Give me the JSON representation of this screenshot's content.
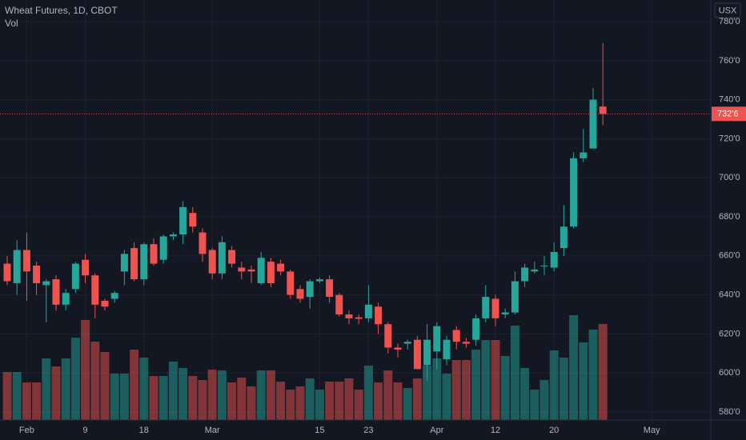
{
  "chart_data": {
    "type": "candlestick",
    "title": "Wheat Futures, 1D, CBOT",
    "volume_label": "Vol",
    "currency": "USX",
    "categories": [
      "",
      "",
      "Feb",
      null,
      null,
      null,
      null,
      null,
      "9",
      null,
      null,
      null,
      null,
      null,
      "18",
      null,
      null,
      null,
      null,
      null,
      null,
      "Mar",
      null,
      null,
      null,
      null,
      null,
      null,
      null,
      null,
      null,
      null,
      "15",
      null,
      null,
      null,
      null,
      "23",
      null,
      null,
      null,
      null,
      null,
      null,
      "Apr",
      null,
      null,
      null,
      null,
      null,
      "12",
      null,
      null,
      null,
      null,
      null,
      "20",
      null,
      null,
      null,
      null,
      null,
      null,
      null,
      null,
      null,
      "May"
    ],
    "open": [
      656,
      646,
      663,
      655,
      645,
      648,
      635,
      643,
      658,
      650,
      637,
      638,
      652,
      664,
      648,
      666,
      658,
      670,
      671,
      682,
      672,
      663,
      651,
      663,
      654,
      653,
      646,
      657,
      656,
      652,
      643,
      639,
      647,
      648,
      640,
      630,
      628.5,
      628,
      634,
      625,
      613,
      615,
      617,
      604,
      611,
      607,
      622,
      616,
      617,
      628,
      638,
      630,
      631,
      647,
      652,
      655,
      654,
      664,
      675,
      710,
      715,
      736.5,
      null,
      null,
      null,
      null,
      null
    ],
    "high": [
      660,
      668,
      672,
      657,
      648,
      650,
      643,
      657,
      661,
      651,
      638,
      642,
      663,
      667,
      667,
      669,
      671,
      672,
      688,
      685,
      674,
      664,
      670,
      665,
      657,
      655,
      662,
      659,
      658,
      653,
      645,
      648,
      649,
      650,
      641,
      632,
      630,
      645,
      636,
      626,
      615,
      617,
      619,
      625,
      626,
      619,
      624,
      618,
      630,
      645,
      640,
      633,
      652,
      656,
      657,
      660,
      667,
      686,
      713,
      725,
      746,
      769,
      null,
      null,
      null,
      null,
      null
    ],
    "low": [
      645,
      640,
      637,
      640,
      626,
      632,
      632,
      641,
      646,
      628,
      632,
      636,
      645,
      647,
      645,
      655,
      656,
      668,
      666,
      672,
      657,
      648,
      648,
      654,
      648,
      646,
      645,
      644,
      650,
      638,
      636,
      633,
      646,
      636,
      629,
      625,
      625,
      626,
      620,
      610,
      608,
      612,
      602,
      596,
      602,
      604,
      612,
      613,
      614,
      626,
      624,
      628,
      630,
      644,
      651,
      650,
      652,
      660,
      674,
      708,
      715,
      727,
      null,
      null,
      null,
      null,
      null
    ],
    "close": [
      647,
      663,
      652,
      646,
      647,
      635,
      641,
      656,
      650,
      635,
      634,
      641,
      661,
      648,
      666,
      656,
      670,
      671,
      685,
      675,
      661,
      651,
      667,
      656,
      652,
      652,
      659,
      646,
      652,
      640,
      638,
      647,
      648,
      639,
      630,
      628,
      627.75,
      635,
      625,
      613,
      612,
      616,
      602,
      617,
      624,
      617,
      616,
      615,
      628,
      639,
      628,
      631,
      647,
      654,
      653,
      655,
      662,
      675,
      710,
      713,
      740,
      732.75,
      null,
      null,
      null,
      null,
      null
    ],
    "volume": [
      60,
      60,
      47,
      47,
      77,
      67,
      77,
      103,
      125,
      98,
      85,
      58,
      58,
      88,
      78,
      55,
      55,
      73,
      65,
      55,
      50,
      63,
      62,
      47,
      53,
      42,
      62,
      62,
      48,
      38,
      42,
      52,
      38,
      48,
      48,
      52,
      38,
      68,
      47,
      62,
      47,
      40,
      52,
      68,
      77,
      58,
      75,
      75,
      88,
      100,
      100,
      80,
      118,
      65,
      38,
      50,
      87,
      78,
      131,
      97,
      113,
      120,
      null,
      null,
      null,
      null,
      null
    ],
    "up_color": "#26a69a",
    "down_color": "#ef5350",
    "ylim": [
      575.9,
      791.1
    ],
    "yticks": [
      {
        "value": 580,
        "label": "580'0"
      },
      {
        "value": 600,
        "label": "600'0"
      },
      {
        "value": 620,
        "label": "620'0"
      },
      {
        "value": 640,
        "label": "640'0"
      },
      {
        "value": 660,
        "label": "660'0"
      },
      {
        "value": 680,
        "label": "680'0"
      },
      {
        "value": 700,
        "label": "700'0"
      },
      {
        "value": 720,
        "label": "720'0"
      },
      {
        "value": 740,
        "label": "740'0"
      },
      {
        "value": 760,
        "label": "760'0"
      },
      {
        "value": 780,
        "label": "780'0"
      }
    ],
    "last_price": {
      "value": 732.75,
      "label": "732'6"
    },
    "grid": true
  }
}
